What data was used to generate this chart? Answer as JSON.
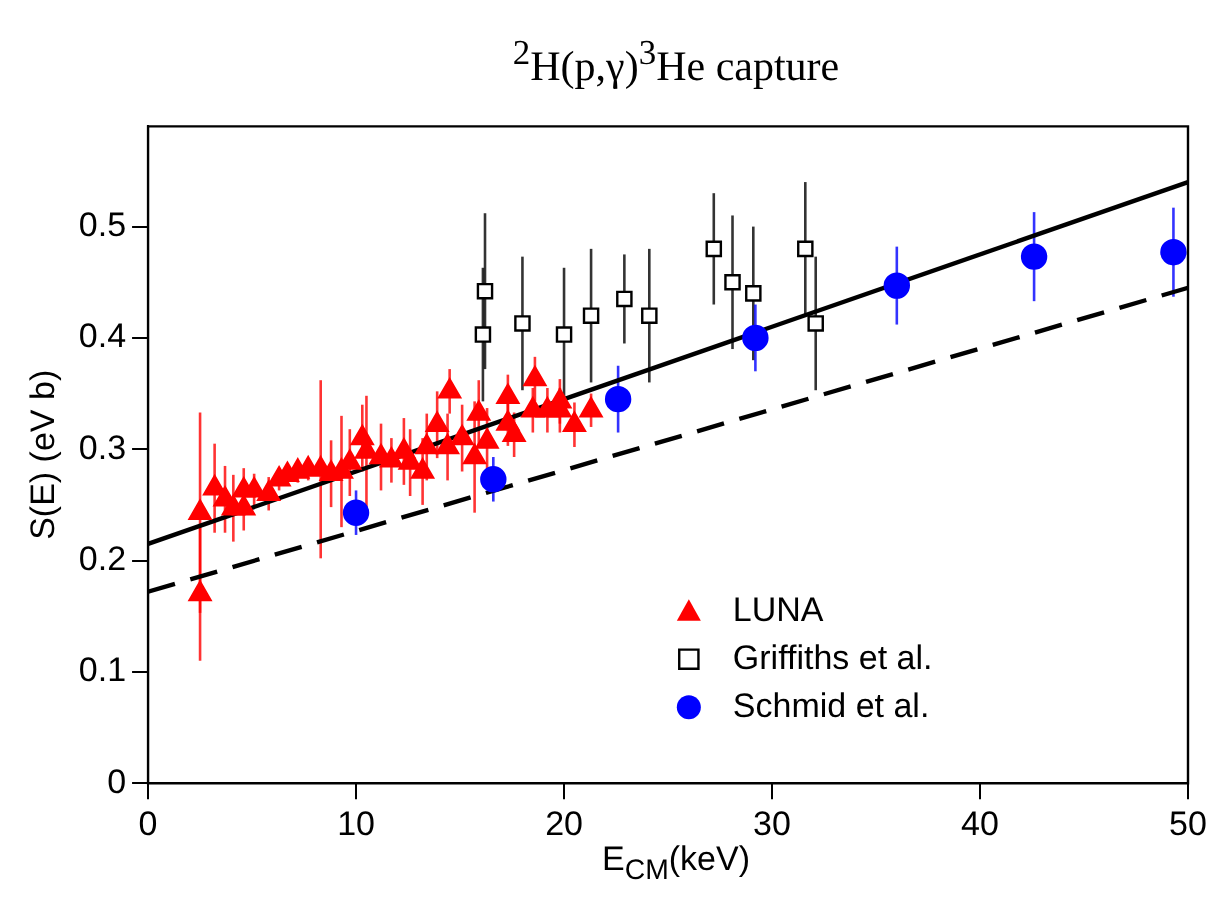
{
  "chart_data": {
    "type": "scatter",
    "title": "$^{2}$H(p,γ)$^{3}$He capture",
    "xlabel": "E$_{CM}$(keV)",
    "ylabel": "S(E) (eV b)",
    "xlim": [
      0,
      50
    ],
    "xticks": [
      0,
      10,
      20,
      30,
      40,
      50
    ],
    "ylim": [
      0,
      0.59
    ],
    "yticks": [
      0,
      0.1,
      0.2,
      0.3,
      0.4,
      0.5
    ],
    "grid": false,
    "legend": "bottom right",
    "series": [
      {
        "type": "line",
        "color": "#000000",
        "line_style": "solid",
        "marker": "none",
        "x": [
          0,
          50
        ],
        "values": [
          0.215,
          0.54
        ]
      },
      {
        "type": "line",
        "color": "#000000",
        "line_style": "dashed",
        "marker": "none",
        "x": [
          0,
          50
        ],
        "values": [
          0.172,
          0.445
        ]
      },
      {
        "type": "scatter",
        "name": "LUNA",
        "color": "#ff0000",
        "marker": "triangle",
        "x": [
          2.5,
          2.5,
          3.2,
          3.7,
          4.1,
          4.6,
          4.6,
          5.1,
          5.8,
          6.3,
          6.7,
          7.2,
          7.7,
          8.3,
          8.8,
          9.3,
          9.7,
          10.3,
          10.5,
          11.2,
          11.7,
          12.3,
          12.6,
          13.2,
          13.4,
          13.9,
          14.5,
          14.4,
          15.1,
          15.9,
          15.7,
          16.3,
          17.3,
          17.3,
          17.6,
          18.6,
          18.5,
          19.2,
          19.8,
          19.8,
          20.5,
          21.3
        ],
        "values": [
          0.17,
          0.243,
          0.265,
          0.255,
          0.247,
          0.247,
          0.263,
          0.263,
          0.26,
          0.273,
          0.277,
          0.28,
          0.282,
          0.282,
          0.278,
          0.28,
          0.288,
          0.31,
          0.298,
          0.293,
          0.29,
          0.298,
          0.288,
          0.28,
          0.302,
          0.322,
          0.352,
          0.302,
          0.31,
          0.332,
          0.293,
          0.307,
          0.347,
          0.323,
          0.313,
          0.363,
          0.335,
          0.335,
          0.343,
          0.335,
          0.322,
          0.335
        ],
        "errors": [
          0.06,
          0.09,
          0.04,
          0.03,
          0.03,
          0.02,
          0.02,
          0.015,
          0.015,
          0.01,
          0.01,
          0.01,
          0.01,
          0.08,
          0.03,
          0.05,
          0.03,
          0.03,
          0.05,
          0.03,
          0.02,
          0.03,
          0.03,
          0.03,
          0.03,
          0.03,
          0.02,
          0.03,
          0.03,
          0.03,
          0.05,
          0.03,
          0.02,
          0.02,
          0.02,
          0.02,
          0.02,
          0.02,
          0.02,
          0.02,
          0.02,
          0.015
        ]
      },
      {
        "type": "scatter",
        "name": "Griffiths et al.",
        "color": "#000000",
        "marker": "square",
        "x": [
          16.1,
          16.2,
          18.0,
          20.0,
          21.3,
          22.9,
          24.1,
          27.2,
          28.1,
          29.1,
          31.6,
          32.1
        ],
        "values": [
          0.403,
          0.442,
          0.413,
          0.403,
          0.42,
          0.435,
          0.42,
          0.48,
          0.45,
          0.44,
          0.48,
          0.413
        ],
        "errors": [
          0.06,
          0.07,
          0.06,
          0.06,
          0.06,
          0.04,
          0.06,
          0.05,
          0.06,
          0.06,
          0.06,
          0.06
        ]
      },
      {
        "type": "scatter",
        "name": "Schmid et al.",
        "color": "#0000ff",
        "marker": "circle",
        "x": [
          10,
          16.6,
          22.6,
          29.2,
          36,
          42.6,
          49.3
        ],
        "values": [
          0.243,
          0.273,
          0.345,
          0.4,
          0.447,
          0.473,
          0.477
        ],
        "errors": [
          0.02,
          0.02,
          0.03,
          0.03,
          0.035,
          0.04,
          0.04
        ]
      }
    ]
  }
}
